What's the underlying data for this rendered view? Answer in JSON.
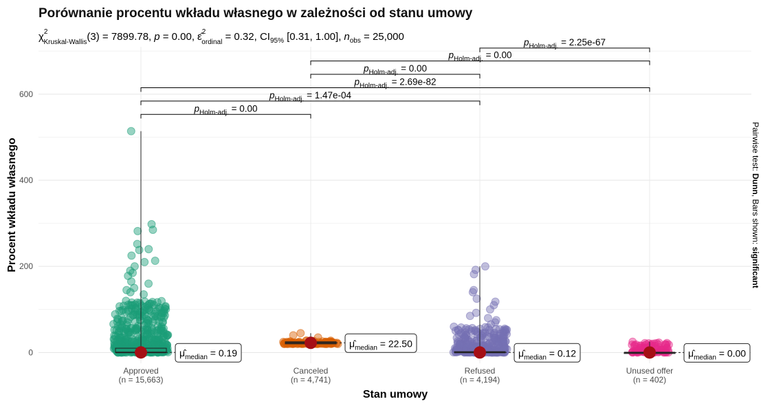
{
  "chart_data": {
    "type": "box",
    "title": "Porównanie procentu wkładu własnego w zależności od stanu umowy",
    "subtitle": {
      "chi": "χ",
      "chi_sup": "2",
      "chi_sub": "Kruskal-Wallis",
      "df_part": "(3) = 7899.78,",
      "p_symbol": "p",
      "p_value": " = 0.00,",
      "eps_symbol": "ε̂",
      "eps_sup": "2",
      "eps_sub": "ordinal",
      "eps_value": " = 0.32, CI",
      "ci_sub": "95%",
      "ci_value": " [0.31, 1.00],",
      "n_symbol": "n",
      "n_sub": "obs",
      "n_value": " = 25,000"
    },
    "xlabel": "Stan umowy",
    "ylabel": "Procent wkładu własnego",
    "right_caption_plain": "Pairwise test: ",
    "right_caption_bold1": "Dunn",
    "right_caption_mid": ", Bars shown: ",
    "right_caption_bold2": "significant",
    "ylim": [
      -25,
      710
    ],
    "yticks": [
      0,
      200,
      400,
      600
    ],
    "yticklabels": [
      "0",
      "200",
      "400",
      "600"
    ],
    "categories": [
      {
        "name": "Approved",
        "n_label": "(n = 15,663)",
        "color": "#1b9e77",
        "median": 0.19,
        "median_label": "0.19",
        "q1": 0,
        "q3": 10,
        "whisker_max": 514,
        "dense_max": 120,
        "outliers": [
          514,
          298,
          285,
          282,
          252,
          240,
          238,
          225,
          213,
          210,
          200,
          190,
          185,
          178,
          165,
          160,
          150,
          145,
          140,
          135
        ]
      },
      {
        "name": "Canceled",
        "n_label": "(n = 4,741)",
        "color": "#d95f02",
        "median": 22.5,
        "median_label": "22.50",
        "q1": 20,
        "q3": 25,
        "whisker_max": 45,
        "dense_max": 28,
        "outliers": [
          45,
          40,
          35
        ]
      },
      {
        "name": "Refused",
        "n_label": "(n = 4,194)",
        "color": "#7570b3",
        "median": 0.12,
        "median_label": "0.12",
        "q1": 0,
        "q3": 2,
        "whisker_max": 200,
        "dense_max": 60,
        "outliers": [
          200,
          192,
          182,
          145,
          140,
          125,
          118,
          110,
          100,
          92,
          85,
          80,
          75,
          70,
          65
        ]
      },
      {
        "name": "Unused offer",
        "n_label": "(n = 402)",
        "color": "#e7298a",
        "median": 0.0,
        "median_label": "0.00",
        "q1": 0,
        "q3": 0,
        "whisker_max": 25,
        "dense_max": 22,
        "outliers": [
          25,
          23,
          21
        ]
      }
    ],
    "median_marker_color": "#a50f15",
    "median_prefix": "μ̂",
    "median_sub": "median",
    "comparisons": [
      {
        "from": 0,
        "to": 1,
        "y": 553,
        "label_p": "p",
        "label_sub": "Holm-adj.",
        "label_value": " = 0.00"
      },
      {
        "from": 0,
        "to": 2,
        "y": 584,
        "label_p": "p",
        "label_sub": "Holm-adj.",
        "label_value": " = 1.47e-04"
      },
      {
        "from": 0,
        "to": 3,
        "y": 615,
        "label_p": "p",
        "label_sub": "Holm-adj.",
        "label_value": " = 2.69e-82"
      },
      {
        "from": 1,
        "to": 2,
        "y": 646,
        "label_p": "p",
        "label_sub": "Holm-adj.",
        "label_value": " = 0.00"
      },
      {
        "from": 1,
        "to": 3,
        "y": 677,
        "label_p": "p",
        "label_sub": "Holm-adj.",
        "label_value": " = 0.00"
      },
      {
        "from": 2,
        "to": 3,
        "y": 707,
        "label_p": "p",
        "label_sub": "Holm-adj.",
        "label_value": " = 2.25e-67"
      }
    ]
  }
}
